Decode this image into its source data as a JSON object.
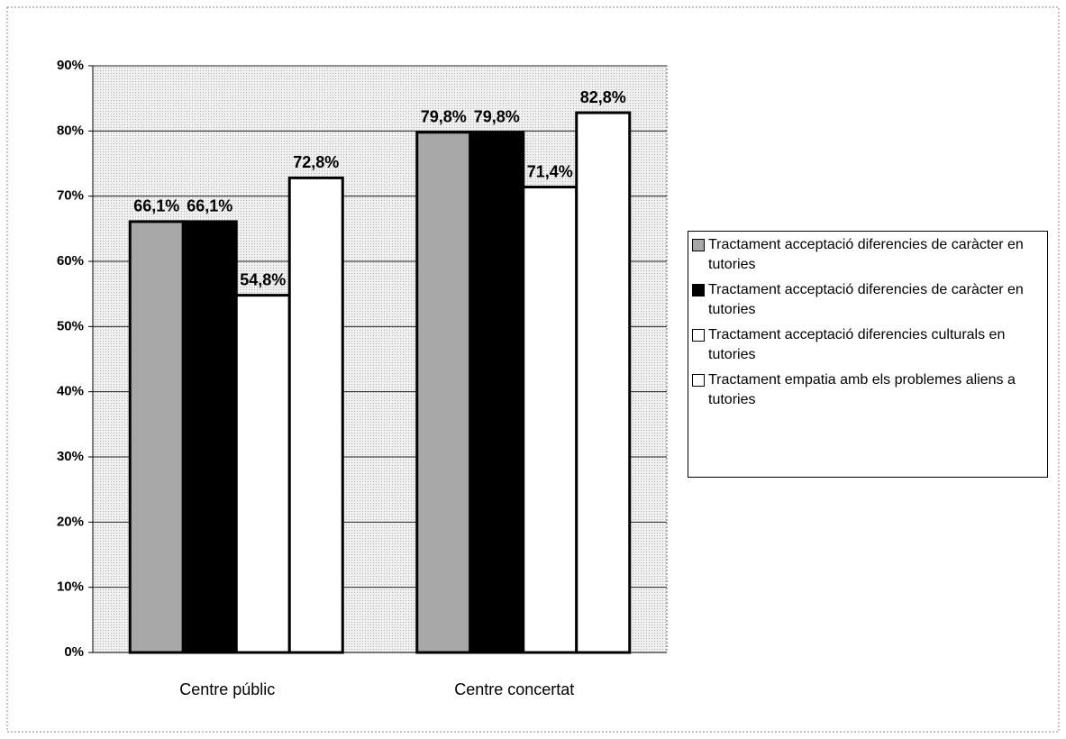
{
  "chart_data": {
    "type": "bar",
    "categories": [
      "Centre públic",
      "Centre concertat"
    ],
    "series": [
      {
        "name": "Tractament acceptació diferencies de caràcter en tutories",
        "color": "#a8a8a8",
        "values": [
          66.1,
          79.8
        ],
        "value_labels": [
          "66,1%",
          "79,8%"
        ]
      },
      {
        "name": "Tractament acceptació diferencies de caràcter en tutories",
        "color": "#000000",
        "values": [
          66.1,
          79.8
        ],
        "value_labels": [
          "66,1%",
          "79,8%"
        ]
      },
      {
        "name": "Tractament acceptació diferencies culturals en tutories",
        "color": "#ffffff",
        "values": [
          54.8,
          71.4
        ],
        "value_labels": [
          "54,8%",
          "71,4%"
        ]
      },
      {
        "name": "Tractament empatia amb els problemes aliens a tutories",
        "color": "#ffffff",
        "values": [
          72.8,
          82.8
        ],
        "value_labels": [
          "72,8%",
          "82,8%"
        ]
      }
    ],
    "ylim": [
      0,
      90
    ],
    "yticks": [
      {
        "value": 0,
        "label": "0%"
      },
      {
        "value": 10,
        "label": "10%"
      },
      {
        "value": 20,
        "label": "20%"
      },
      {
        "value": 30,
        "label": "30%"
      },
      {
        "value": 40,
        "label": "40%"
      },
      {
        "value": 50,
        "label": "50%"
      },
      {
        "value": 60,
        "label": "60%"
      },
      {
        "value": 70,
        "label": "70%"
      },
      {
        "value": 80,
        "label": "80%"
      },
      {
        "value": 90,
        "label": "90%"
      }
    ],
    "grid": true
  }
}
